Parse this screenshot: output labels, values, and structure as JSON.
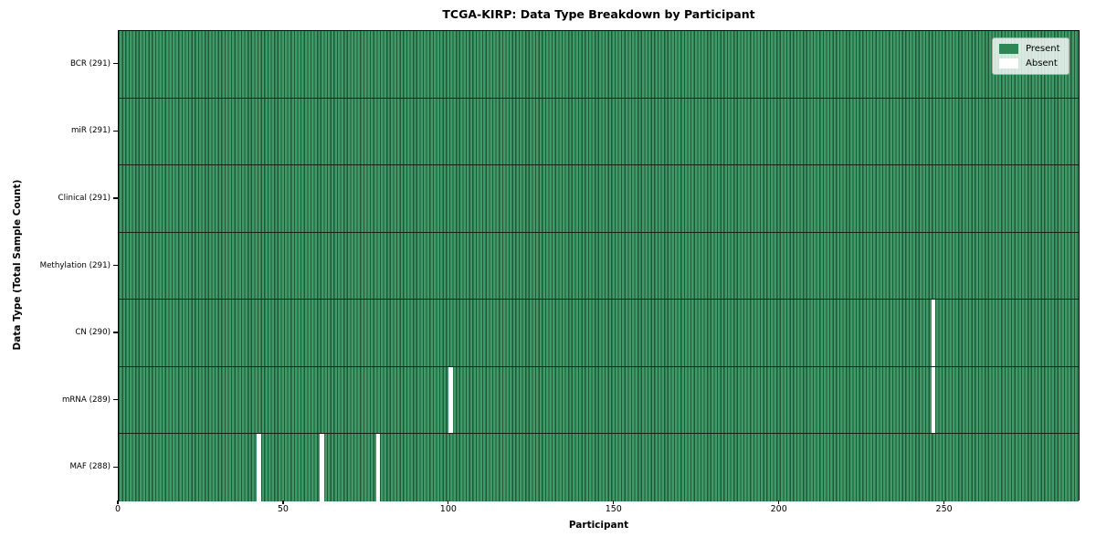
{
  "title": "TCGA-KIRP: Data Type Breakdown by Participant",
  "chart_data": {
    "type": "heatmap",
    "title": "TCGA-KIRP: Data Type Breakdown by Participant",
    "xlabel": "Participant",
    "ylabel": "Data Type (Total Sample Count)",
    "x_ticks": [
      0,
      50,
      100,
      150,
      200,
      250
    ],
    "xlim": [
      0,
      291
    ],
    "n_participants": 291,
    "grid": "cell-edge-lines",
    "legend_position": "upper right",
    "rows": [
      {
        "name": "bcr",
        "label": "BCR (291)",
        "data_type": "BCR",
        "present_count": 291,
        "total": 291,
        "absent_participants": []
      },
      {
        "name": "mir",
        "label": "miR (291)",
        "data_type": "miR",
        "present_count": 291,
        "total": 291,
        "absent_participants": []
      },
      {
        "name": "clinical",
        "label": "Clinical (291)",
        "data_type": "Clinical",
        "present_count": 291,
        "total": 291,
        "absent_participants": []
      },
      {
        "name": "methylation",
        "label": "Methylation (291)",
        "data_type": "Methylation",
        "present_count": 291,
        "total": 291,
        "absent_participants": []
      },
      {
        "name": "cn",
        "label": "CN (290)",
        "data_type": "CN",
        "present_count": 290,
        "total": 291,
        "absent_participants": [
          246
        ]
      },
      {
        "name": "mrna",
        "label": "mRNA (289)",
        "data_type": "mRNA",
        "present_count": 289,
        "total": 291,
        "absent_participants": [
          100,
          246
        ]
      },
      {
        "name": "maf",
        "label": "MAF (288)",
        "data_type": "MAF",
        "present_count": 288,
        "total": 291,
        "absent_participants": [
          42,
          61,
          78
        ]
      }
    ],
    "legend": [
      {
        "label": "Present",
        "color": "#2e8657"
      },
      {
        "label": "Absent",
        "color": "#ffffff"
      }
    ],
    "colors": {
      "present_fill": "#3f9a68",
      "cell_edge": "#20583a",
      "row_divider": "#1b1b1b",
      "absent": "#ffffff",
      "spine": "#000000",
      "background": "#ffffff"
    }
  }
}
